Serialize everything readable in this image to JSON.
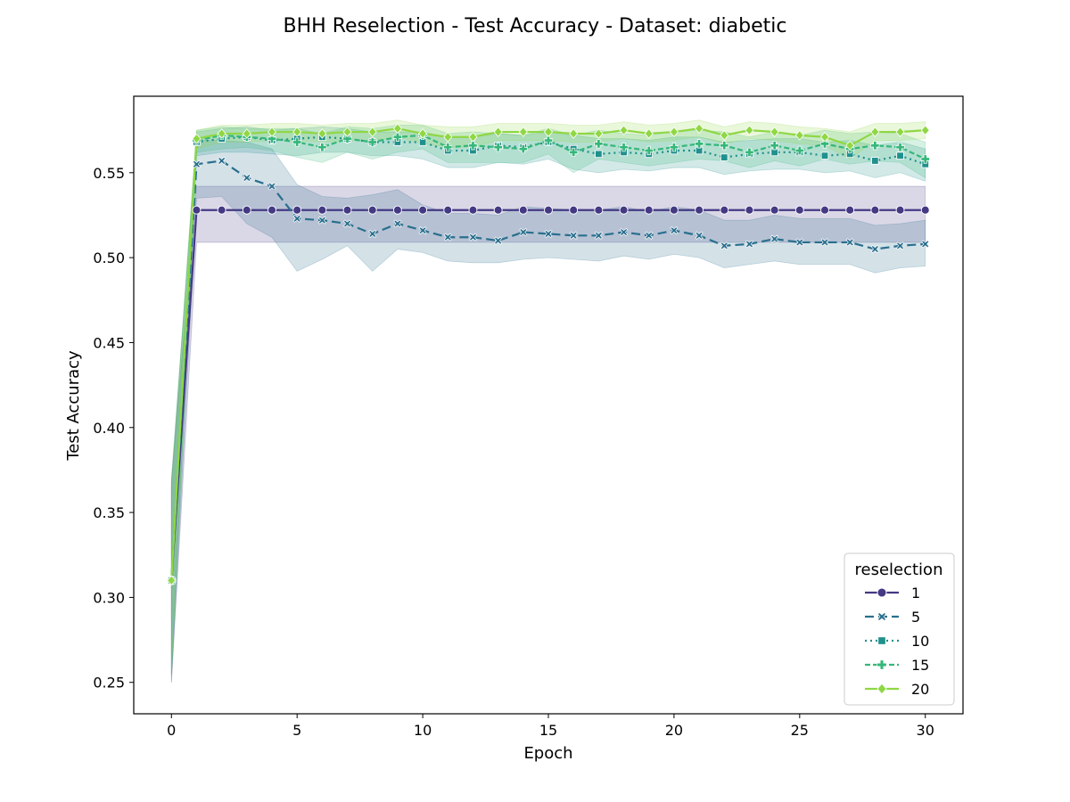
{
  "chart_data": {
    "type": "line",
    "title": "BHH Reselection - Test Accuracy - Dataset: diabetic",
    "xlabel": "Epoch",
    "ylabel": "Test Accuracy",
    "xlim": [
      -1.5,
      31.5
    ],
    "ylim": [
      0.2315,
      0.595
    ],
    "xticks": [
      0,
      5,
      10,
      15,
      20,
      25,
      30
    ],
    "yticks": [
      0.25,
      0.3,
      0.35,
      0.4,
      0.45,
      0.5,
      0.55
    ],
    "ytick_labels": [
      "0.25",
      "0.30",
      "0.35",
      "0.40",
      "0.45",
      "0.50",
      "0.55"
    ],
    "grid": false,
    "legend": {
      "title": "reselection",
      "placement": "lower-right"
    },
    "x": [
      0,
      1,
      2,
      3,
      4,
      5,
      6,
      7,
      8,
      9,
      10,
      11,
      12,
      13,
      14,
      15,
      16,
      17,
      18,
      19,
      20,
      21,
      22,
      23,
      24,
      25,
      26,
      27,
      28,
      29,
      30
    ],
    "series": [
      {
        "name": "1",
        "color": "#443983",
        "dash": "solid",
        "marker": "circle",
        "values": [
          0.31,
          0.528,
          0.528,
          0.528,
          0.528,
          0.528,
          0.528,
          0.528,
          0.528,
          0.528,
          0.528,
          0.528,
          0.528,
          0.528,
          0.528,
          0.528,
          0.528,
          0.528,
          0.528,
          0.528,
          0.528,
          0.528,
          0.528,
          0.528,
          0.528,
          0.528,
          0.528,
          0.528,
          0.528,
          0.528,
          0.528
        ],
        "lower": [
          0.25,
          0.509,
          0.509,
          0.509,
          0.509,
          0.509,
          0.509,
          0.509,
          0.509,
          0.509,
          0.509,
          0.509,
          0.509,
          0.509,
          0.509,
          0.509,
          0.509,
          0.509,
          0.509,
          0.509,
          0.509,
          0.509,
          0.509,
          0.509,
          0.509,
          0.509,
          0.509,
          0.509,
          0.509,
          0.509,
          0.509
        ],
        "upper": [
          0.368,
          0.542,
          0.542,
          0.542,
          0.542,
          0.542,
          0.542,
          0.542,
          0.542,
          0.542,
          0.542,
          0.542,
          0.542,
          0.542,
          0.542,
          0.542,
          0.542,
          0.542,
          0.542,
          0.542,
          0.542,
          0.542,
          0.542,
          0.542,
          0.542,
          0.542,
          0.542,
          0.542,
          0.542,
          0.542,
          0.542
        ]
      },
      {
        "name": "5",
        "color": "#2a6f8e",
        "dash": "10,5",
        "marker": "x",
        "values": [
          0.31,
          0.555,
          0.557,
          0.547,
          0.542,
          0.523,
          0.522,
          0.52,
          0.514,
          0.52,
          0.516,
          0.512,
          0.512,
          0.51,
          0.515,
          0.514,
          0.513,
          0.513,
          0.515,
          0.513,
          0.516,
          0.513,
          0.507,
          0.508,
          0.511,
          0.509,
          0.509,
          0.509,
          0.505,
          0.507,
          0.508
        ],
        "lower": [
          0.25,
          0.535,
          0.536,
          0.52,
          0.512,
          0.492,
          0.499,
          0.507,
          0.492,
          0.505,
          0.503,
          0.498,
          0.497,
          0.497,
          0.499,
          0.5,
          0.499,
          0.498,
          0.501,
          0.499,
          0.502,
          0.5,
          0.494,
          0.496,
          0.498,
          0.496,
          0.496,
          0.496,
          0.491,
          0.494,
          0.495
        ],
        "upper": [
          0.37,
          0.569,
          0.569,
          0.568,
          0.564,
          0.543,
          0.536,
          0.535,
          0.537,
          0.54,
          0.531,
          0.526,
          0.526,
          0.525,
          0.53,
          0.529,
          0.528,
          0.528,
          0.53,
          0.527,
          0.53,
          0.528,
          0.522,
          0.522,
          0.525,
          0.523,
          0.523,
          0.523,
          0.519,
          0.52,
          0.522
        ]
      },
      {
        "name": "10",
        "color": "#20908d",
        "dash": "2,4",
        "marker": "square",
        "values": [
          0.31,
          0.568,
          0.57,
          0.571,
          0.569,
          0.57,
          0.571,
          0.57,
          0.568,
          0.568,
          0.568,
          0.563,
          0.563,
          0.566,
          0.565,
          0.568,
          0.564,
          0.561,
          0.562,
          0.561,
          0.563,
          0.563,
          0.559,
          0.561,
          0.562,
          0.562,
          0.56,
          0.561,
          0.557,
          0.56,
          0.555
        ],
        "lower": [
          0.255,
          0.56,
          0.562,
          0.562,
          0.561,
          0.56,
          0.562,
          0.562,
          0.56,
          0.56,
          0.558,
          0.553,
          0.553,
          0.556,
          0.555,
          0.558,
          0.552,
          0.55,
          0.552,
          0.551,
          0.553,
          0.553,
          0.549,
          0.551,
          0.552,
          0.552,
          0.55,
          0.551,
          0.547,
          0.55,
          0.545
        ],
        "upper": [
          0.365,
          0.574,
          0.576,
          0.577,
          0.575,
          0.576,
          0.577,
          0.576,
          0.574,
          0.574,
          0.574,
          0.571,
          0.571,
          0.573,
          0.572,
          0.574,
          0.572,
          0.57,
          0.57,
          0.569,
          0.571,
          0.571,
          0.568,
          0.569,
          0.57,
          0.57,
          0.568,
          0.569,
          0.566,
          0.568,
          0.564
        ]
      },
      {
        "name": "15",
        "color": "#35b779",
        "dash": "6,3",
        "marker": "plus",
        "values": [
          0.31,
          0.569,
          0.572,
          0.571,
          0.57,
          0.568,
          0.565,
          0.57,
          0.568,
          0.571,
          0.572,
          0.565,
          0.566,
          0.565,
          0.564,
          0.569,
          0.562,
          0.567,
          0.565,
          0.563,
          0.565,
          0.567,
          0.566,
          0.562,
          0.566,
          0.563,
          0.567,
          0.564,
          0.566,
          0.565,
          0.558
        ],
        "lower": [
          0.255,
          0.562,
          0.564,
          0.565,
          0.563,
          0.559,
          0.556,
          0.562,
          0.558,
          0.562,
          0.564,
          0.556,
          0.556,
          0.556,
          0.556,
          0.561,
          0.55,
          0.558,
          0.556,
          0.554,
          0.556,
          0.558,
          0.557,
          0.553,
          0.557,
          0.554,
          0.558,
          0.555,
          0.557,
          0.556,
          0.547
        ],
        "upper": [
          0.365,
          0.575,
          0.577,
          0.576,
          0.576,
          0.576,
          0.573,
          0.577,
          0.576,
          0.578,
          0.578,
          0.573,
          0.574,
          0.573,
          0.572,
          0.576,
          0.572,
          0.575,
          0.573,
          0.572,
          0.574,
          0.575,
          0.574,
          0.571,
          0.574,
          0.572,
          0.575,
          0.573,
          0.574,
          0.573,
          0.568
        ]
      },
      {
        "name": "20",
        "color": "#8fd744",
        "dash": "solid",
        "marker": "diamond",
        "values": [
          0.31,
          0.57,
          0.573,
          0.573,
          0.574,
          0.574,
          0.573,
          0.574,
          0.574,
          0.576,
          0.573,
          0.571,
          0.571,
          0.574,
          0.574,
          0.574,
          0.573,
          0.573,
          0.575,
          0.573,
          0.574,
          0.576,
          0.572,
          0.575,
          0.574,
          0.572,
          0.571,
          0.566,
          0.574,
          0.574,
          0.575
        ],
        "lower": [
          0.255,
          0.564,
          0.568,
          0.568,
          0.569,
          0.569,
          0.568,
          0.569,
          0.569,
          0.571,
          0.567,
          0.565,
          0.565,
          0.569,
          0.569,
          0.569,
          0.568,
          0.568,
          0.57,
          0.568,
          0.569,
          0.571,
          0.567,
          0.57,
          0.569,
          0.567,
          0.566,
          0.558,
          0.569,
          0.569,
          0.57
        ],
        "upper": [
          0.365,
          0.575,
          0.578,
          0.578,
          0.579,
          0.579,
          0.578,
          0.579,
          0.579,
          0.581,
          0.578,
          0.577,
          0.577,
          0.579,
          0.579,
          0.579,
          0.578,
          0.578,
          0.58,
          0.578,
          0.579,
          0.581,
          0.577,
          0.58,
          0.579,
          0.577,
          0.576,
          0.574,
          0.579,
          0.579,
          0.58
        ]
      }
    ]
  }
}
